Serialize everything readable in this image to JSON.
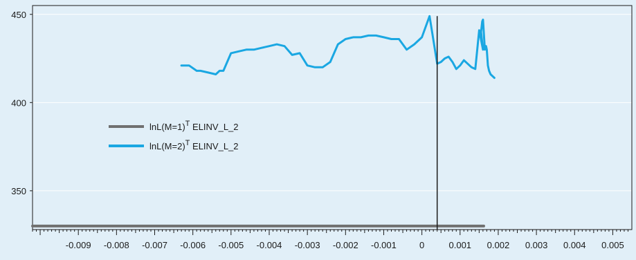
{
  "chart_data": {
    "type": "line",
    "title": "",
    "xlabel": "",
    "ylabel": "",
    "xlim": [
      -0.0102,
      0.0055
    ],
    "ylim": [
      328,
      455
    ],
    "x_ticks": [
      {
        "value": -0.009,
        "label": "-0.009"
      },
      {
        "value": -0.008,
        "label": "-0.008"
      },
      {
        "value": -0.007,
        "label": "-0.007"
      },
      {
        "value": -0.006,
        "label": "-0.006"
      },
      {
        "value": -0.005,
        "label": "-0.005"
      },
      {
        "value": -0.004,
        "label": "-0.004"
      },
      {
        "value": -0.003,
        "label": "-0.003"
      },
      {
        "value": -0.002,
        "label": "-0.002"
      },
      {
        "value": -0.001,
        "label": "-0.001"
      },
      {
        "value": 0,
        "label": "0"
      },
      {
        "value": 0.001,
        "label": "0.001"
      },
      {
        "value": 0.002,
        "label": "0.002"
      },
      {
        "value": 0.003,
        "label": "0.003"
      },
      {
        "value": 0.004,
        "label": "0.004"
      },
      {
        "value": 0.005,
        "label": "0.005"
      }
    ],
    "y_ticks": [
      {
        "value": 350,
        "label": "350"
      },
      {
        "value": 400,
        "label": "400"
      },
      {
        "value": 450,
        "label": "450"
      }
    ],
    "legend_position": "left-center",
    "series": [
      {
        "name": "lnL(M=1)",
        "name_sup": "T",
        "name_suffix": " ELINV_L_2",
        "color": "#707070",
        "x": [
          -0.0102,
          0.00162
        ],
        "y": [
          330,
          330
        ]
      },
      {
        "name": "lnL(M=2)",
        "name_sup": "T",
        "name_suffix": " ELINV_L_2",
        "color": "#1aa7e2",
        "x": [
          -0.0063,
          -0.0061,
          -0.0059,
          -0.0058,
          -0.0056,
          -0.0054,
          -0.0053,
          -0.0052,
          -0.005,
          -0.0048,
          -0.0046,
          -0.0044,
          -0.0042,
          -0.004,
          -0.0038,
          -0.0036,
          -0.0034,
          -0.0032,
          -0.003,
          -0.0028,
          -0.0026,
          -0.0024,
          -0.0022,
          -0.002,
          -0.0018,
          -0.0016,
          -0.0014,
          -0.0012,
          -0.001,
          -0.0008,
          -0.0006,
          -0.0004,
          -0.0002,
          0.0,
          0.0002,
          0.0004,
          0.0005,
          0.0006,
          0.0007,
          0.0008,
          0.0009,
          0.001,
          0.0011,
          0.0012,
          0.0013,
          0.0014,
          0.0015,
          0.0016,
          0.00155,
          0.00158,
          0.0016,
          0.00165,
          0.00168,
          0.0017,
          0.00173,
          0.00176,
          0.0018,
          0.0019
        ],
        "y": [
          421,
          421,
          418,
          418,
          417,
          416,
          418,
          418,
          428,
          429,
          430,
          430,
          431,
          432,
          433,
          432,
          427,
          428,
          421,
          420,
          420,
          423,
          433,
          436,
          437,
          437,
          438,
          438,
          437,
          436,
          436,
          430,
          433,
          437,
          449,
          422,
          423,
          425,
          426,
          423,
          419,
          421,
          424,
          422,
          420,
          419,
          441,
          430,
          440,
          446,
          447,
          430,
          432,
          430,
          421,
          418,
          416,
          414
        ]
      }
    ],
    "reference_line": {
      "x": 0.0004,
      "color": "#1a1a1a"
    }
  }
}
